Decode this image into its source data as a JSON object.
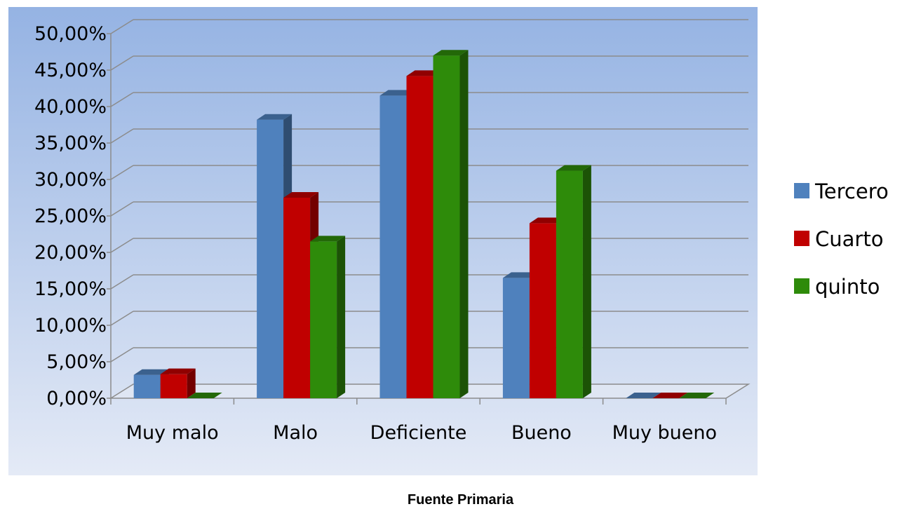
{
  "chart_data": {
    "type": "bar",
    "categories": [
      "Muy malo",
      "Malo",
      "Deficiente",
      "Bueno",
      "Muy bueno"
    ],
    "series": [
      {
        "name": "Tercero",
        "color": "#4f81bd",
        "values": [
          3.2,
          38.2,
          41.5,
          16.5,
          0
        ]
      },
      {
        "name": "Cuarto",
        "color": "#c00000",
        "values": [
          3.3,
          27.5,
          44.2,
          24.0,
          0
        ]
      },
      {
        "name": "quinto",
        "color": "#2e8b0a",
        "values": [
          0,
          21.5,
          47.0,
          31.2,
          0
        ]
      }
    ],
    "y_ticks": [
      "0,00%",
      "5,00%",
      "10,00%",
      "15,00%",
      "20,00%",
      "25,00%",
      "30,00%",
      "35,00%",
      "40,00%",
      "45,00%",
      "50,00%"
    ],
    "ylim": [
      0,
      50
    ],
    "grid": true,
    "legend": "right",
    "xlabel": "",
    "ylabel": ""
  },
  "caption": "Fuente Primaria"
}
